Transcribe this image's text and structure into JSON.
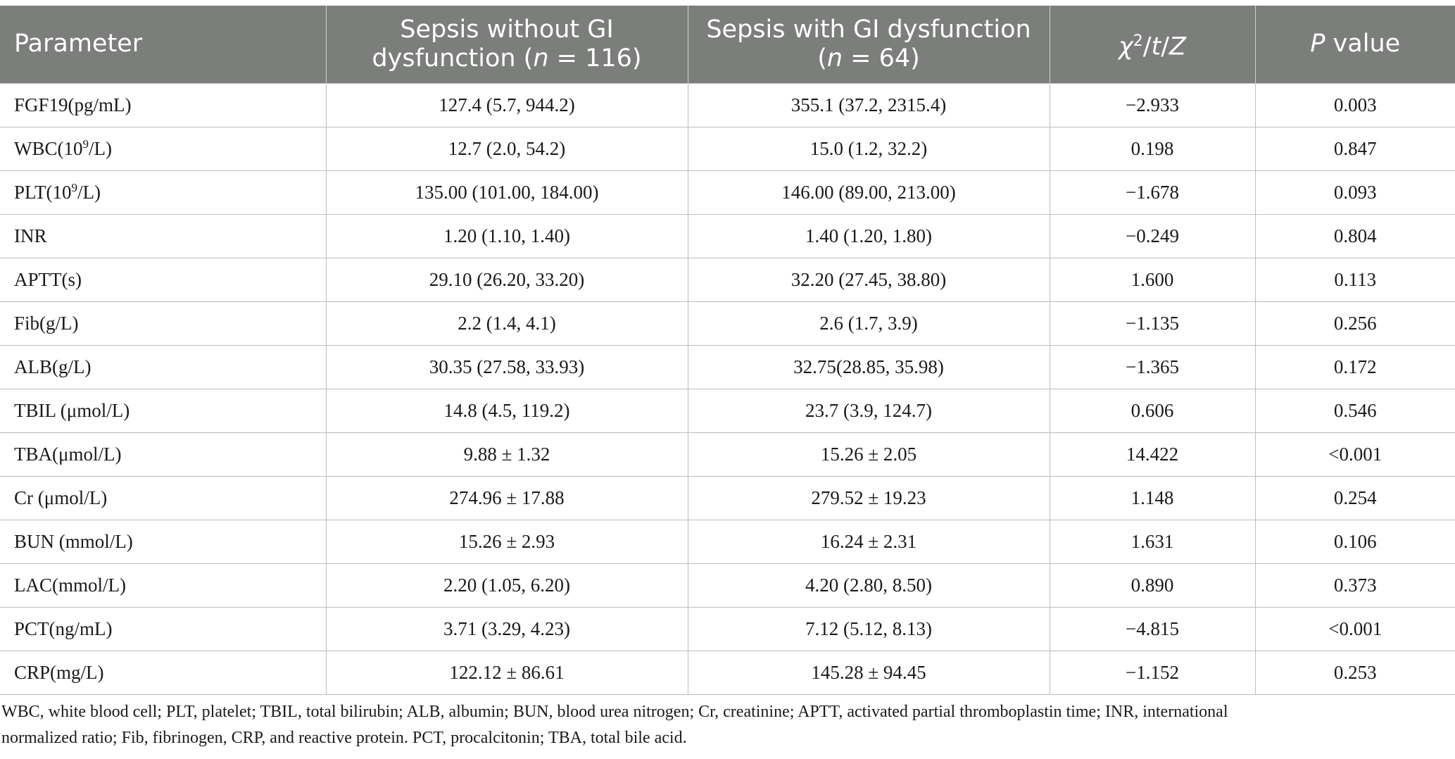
{
  "table": {
    "headers": {
      "parameter": "Parameter",
      "group1_line1": "Sepsis without GI",
      "group1_line2_pre": "dysfunction (",
      "group1_n_var": "n",
      "group1_n_val": " = 116)",
      "group2_line1": "Sepsis with GI dysfunction",
      "group2_line2_pre": "(",
      "group2_n_var": "n",
      "group2_n_val": " = 64)",
      "stat_chi": "χ",
      "stat_sup": "2",
      "stat_rest_1": "/",
      "stat_t": "t",
      "stat_rest_2": "/",
      "stat_z": "Z",
      "pvalue_p": "P",
      "pvalue_rest": " value"
    },
    "rows": [
      {
        "param_pre": "FGF19(pg/mL)",
        "param_sup": "",
        "param_post": "",
        "g1": "127.4 (5.7, 944.2)",
        "g2": "355.1 (37.2, 2315.4)",
        "stat": "−2.933",
        "p": "0.003"
      },
      {
        "param_pre": "WBC(10",
        "param_sup": "9",
        "param_post": "/L)",
        "g1": "12.7 (2.0, 54.2)",
        "g2": "15.0 (1.2, 32.2)",
        "stat": "0.198",
        "p": "0.847"
      },
      {
        "param_pre": "PLT(10",
        "param_sup": "9",
        "param_post": "/L)",
        "g1": "135.00 (101.00, 184.00)",
        "g2": "146.00 (89.00, 213.00)",
        "stat": "−1.678",
        "p": "0.093"
      },
      {
        "param_pre": "INR",
        "param_sup": "",
        "param_post": "",
        "g1": "1.20 (1.10, 1.40)",
        "g2": "1.40 (1.20, 1.80)",
        "stat": "−0.249",
        "p": "0.804"
      },
      {
        "param_pre": "APTT(s)",
        "param_sup": "",
        "param_post": "",
        "g1": "29.10 (26.20, 33.20)",
        "g2": "32.20 (27.45, 38.80)",
        "stat": "1.600",
        "p": "0.113"
      },
      {
        "param_pre": "Fib(g/L)",
        "param_sup": "",
        "param_post": "",
        "g1": "2.2 (1.4, 4.1)",
        "g2": "2.6 (1.7, 3.9)",
        "stat": "−1.135",
        "p": "0.256"
      },
      {
        "param_pre": "ALB(g/L)",
        "param_sup": "",
        "param_post": "",
        "g1": "30.35 (27.58, 33.93)",
        "g2": "32.75(28.85, 35.98)",
        "stat": "−1.365",
        "p": "0.172"
      },
      {
        "param_pre": "TBIL (μmol/L)",
        "param_sup": "",
        "param_post": "",
        "g1": "14.8 (4.5, 119.2)",
        "g2": "23.7 (3.9, 124.7)",
        "stat": "0.606",
        "p": "0.546"
      },
      {
        "param_pre": "TBA(μmol/L)",
        "param_sup": "",
        "param_post": "",
        "g1": "9.88 ± 1.32",
        "g2": "15.26 ± 2.05",
        "stat": "14.422",
        "p": "<0.001"
      },
      {
        "param_pre": "Cr (μmol/L)",
        "param_sup": "",
        "param_post": "",
        "g1": "274.96 ± 17.88",
        "g2": "279.52 ± 19.23",
        "stat": "1.148",
        "p": "0.254"
      },
      {
        "param_pre": "BUN (mmol/L)",
        "param_sup": "",
        "param_post": "",
        "g1": "15.26 ± 2.93",
        "g2": "16.24 ± 2.31",
        "stat": "1.631",
        "p": "0.106"
      },
      {
        "param_pre": "LAC(mmol/L)",
        "param_sup": "",
        "param_post": "",
        "g1": "2.20 (1.05, 6.20)",
        "g2": "4.20 (2.80, 8.50)",
        "stat": "0.890",
        "p": "0.373"
      },
      {
        "param_pre": "PCT(ng/mL)",
        "param_sup": "",
        "param_post": "",
        "g1": "3.71 (3.29, 4.23)",
        "g2": "7.12 (5.12, 8.13)",
        "stat": "−4.815",
        "p": "<0.001"
      },
      {
        "param_pre": "CRP(mg/L)",
        "param_sup": "",
        "param_post": "",
        "g1": "122.12 ± 86.61",
        "g2": "145.28 ± 94.45",
        "stat": "−1.152",
        "p": "0.253"
      }
    ]
  },
  "footnote": {
    "line1": "WBC, white blood cell; PLT, platelet; TBIL, total bilirubin; ALB, albumin; BUN, blood urea nitrogen; Cr, creatinine; APTT, activated partial thromboplastin time; INR, international",
    "line2": "normalized ratio; Fib, fibrinogen, CRP, and reactive protein. PCT, procalcitonin; TBA, total bile acid."
  },
  "colors": {
    "header_bg": "#7c7e7c",
    "header_text": "#ffffff",
    "grid": "#bdbdbd"
  }
}
